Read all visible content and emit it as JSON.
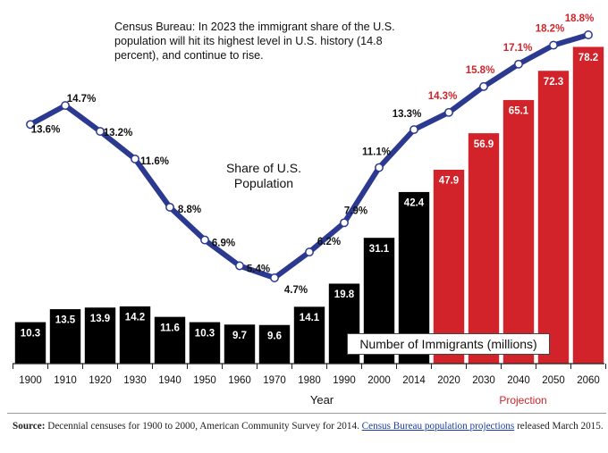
{
  "note": "Census Bureau: In 2023 the immigrant share of the U.S. population will hit its highest level in U.S. history (14.8 percent), and continue to rise.",
  "share_series_label": "Share of U.S. Population",
  "bar_series_label": "Number of Immigrants (millions)",
  "x_axis_title": "Year",
  "projection_label": "Projection",
  "source": {
    "prefix": "Source:",
    "text": " Decennial censuses for 1900 to 2000, American Community Survey for 2014. ",
    "link_text": "Census Bureau population projections",
    "suffix": " released March 2015."
  },
  "colors": {
    "historical_bar": "#000000",
    "projection_bar": "#d2232a",
    "line": "#2b3990",
    "historical_label": "#111111",
    "projection_label": "#d2232a"
  },
  "chart_data": {
    "type": "bar",
    "categories": [
      "1900",
      "1910",
      "1920",
      "1930",
      "1940",
      "1950",
      "1960",
      "1970",
      "1980",
      "1990",
      "2000",
      "2014",
      "2020",
      "2030",
      "2040",
      "2050",
      "2060"
    ],
    "projection_start_index": 12,
    "bar_labels": [
      "10.3",
      "13.5",
      "13.9",
      "14.2",
      "11.6",
      "10.3",
      "9.7",
      "9.6",
      "14.1",
      "19.8",
      "31.1",
      "42.4",
      "47.9",
      "56.9",
      "65.1",
      "72.3",
      "78.2"
    ],
    "share_labels": [
      "13.6%",
      "14.7%",
      "13.2%",
      "11.6%",
      "8.8%",
      "6.9%",
      "5.4%",
      "4.7%",
      "6.2%",
      "7.9%",
      "11.1%",
      "13.3%",
      "14.3%",
      "15.8%",
      "17.1%",
      "18.2%",
      "18.8%"
    ],
    "series": [
      {
        "name": "Number of Immigrants (millions)",
        "values": [
          10.3,
          13.5,
          13.9,
          14.2,
          11.6,
          10.3,
          9.7,
          9.6,
          14.1,
          19.8,
          31.1,
          42.4,
          47.9,
          56.9,
          65.1,
          72.3,
          78.2
        ]
      },
      {
        "name": "Share of U.S. Population",
        "values": [
          13.6,
          14.7,
          13.2,
          11.6,
          8.8,
          6.9,
          5.4,
          4.7,
          6.2,
          7.9,
          11.1,
          13.3,
          14.3,
          15.8,
          17.1,
          18.2,
          18.8
        ]
      }
    ],
    "bar_ylim": [
      0,
      80
    ],
    "share_ylim": [
      4.7,
      18.8
    ]
  }
}
